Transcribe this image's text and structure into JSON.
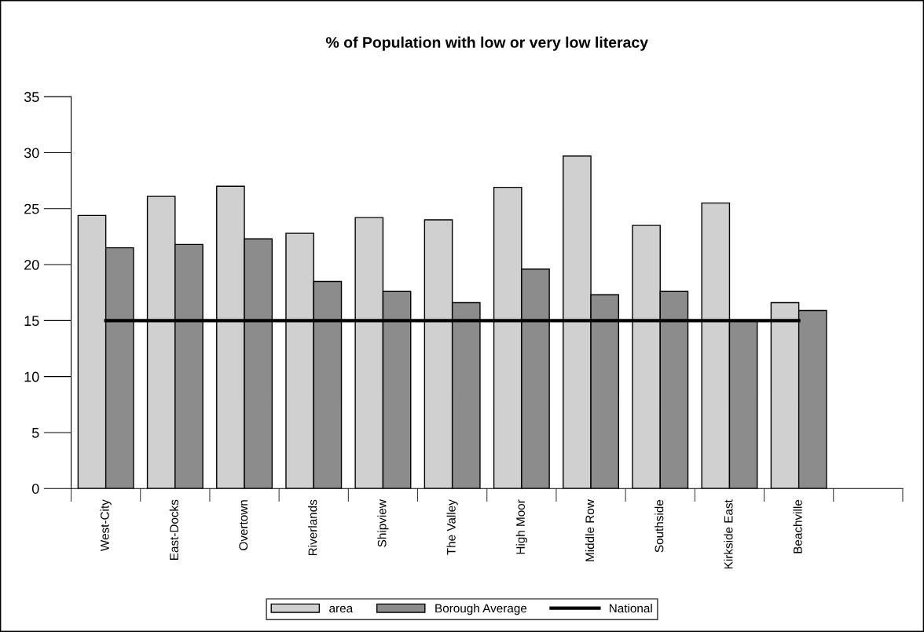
{
  "chart_data": {
    "type": "bar",
    "title": "% of Population with low or very low literacy",
    "categories": [
      "West-City",
      "East-Docks",
      "Overtown",
      "Riverlands",
      "Shipview",
      "The Valley",
      "High Moor",
      "Middle Row",
      "Southside",
      "Kirkside East",
      "Beachville",
      null
    ],
    "series": [
      {
        "name": "area",
        "color": "#d0d0d0",
        "values": [
          24.4,
          26.1,
          27.0,
          22.8,
          24.2,
          24.0,
          26.9,
          29.7,
          23.5,
          25.5,
          16.6,
          null
        ]
      },
      {
        "name": "Borough Average",
        "color": "#8c8c8c",
        "values": [
          21.5,
          21.8,
          22.3,
          18.5,
          17.6,
          16.6,
          19.6,
          17.3,
          17.6,
          15.0,
          15.9,
          null
        ]
      },
      {
        "name": "National",
        "type": "line",
        "color": "#000000",
        "values": [
          15,
          15,
          15,
          15,
          15,
          15,
          15,
          15,
          15,
          15,
          15,
          null
        ]
      }
    ],
    "ylim": [
      0,
      35
    ],
    "yticks": [
      0,
      5,
      10,
      15,
      20,
      25,
      30,
      35
    ],
    "grid": false,
    "legend": "bottom",
    "marker": "none",
    "line_style": "solid"
  }
}
